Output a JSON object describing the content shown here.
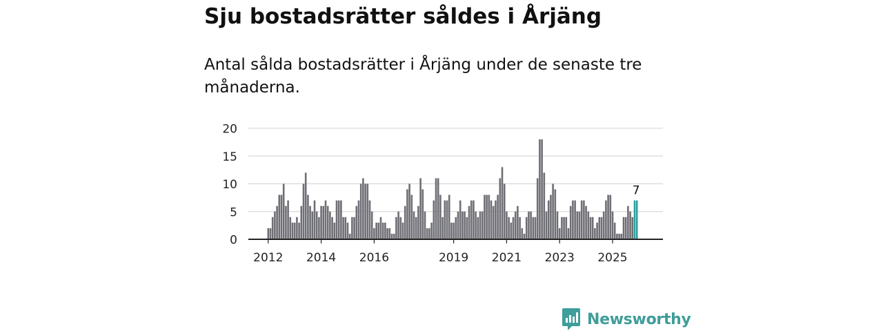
{
  "title": "Sju bostadsrätter såldes i Årjäng",
  "subtitle": "Antal sålda bostadsrätter i Årjäng under de senaste tre månaderna.",
  "brand": {
    "name": "Newsworthy",
    "logo_icon": "newsworthy-logo-icon",
    "color": "#3f9d9a"
  },
  "chart_data": {
    "type": "bar",
    "title": "Sju bostadsrätter såldes i Årjäng",
    "xlabel": "",
    "ylabel": "",
    "ylim": [
      0,
      20
    ],
    "yticks": [
      0,
      5,
      10,
      15,
      20
    ],
    "ytick_labels": [
      "0",
      "5",
      "10",
      "15",
      "20"
    ],
    "grid": true,
    "bar_color": "#6e6e75",
    "highlight_color": "#2c9e9a",
    "start": "2012-01",
    "categories": [
      "2012-01",
      "2012-02",
      "2012-03",
      "2012-04",
      "2012-05",
      "2012-06",
      "2012-07",
      "2012-08",
      "2012-09",
      "2012-10",
      "2012-11",
      "2012-12",
      "2013-01",
      "2013-02",
      "2013-03",
      "2013-04",
      "2013-05",
      "2013-06",
      "2013-07",
      "2013-08",
      "2013-09",
      "2013-10",
      "2013-11",
      "2013-12",
      "2014-01",
      "2014-02",
      "2014-03",
      "2014-04",
      "2014-05",
      "2014-06",
      "2014-07",
      "2014-08",
      "2014-09",
      "2014-10",
      "2014-11",
      "2014-12",
      "2015-01",
      "2015-02",
      "2015-03",
      "2015-04",
      "2015-05",
      "2015-06",
      "2015-07",
      "2015-08",
      "2015-09",
      "2015-10",
      "2015-11",
      "2015-12",
      "2016-01",
      "2016-02",
      "2016-03",
      "2016-04",
      "2016-05",
      "2016-06",
      "2016-07",
      "2016-08",
      "2016-09",
      "2016-10",
      "2016-11",
      "2016-12",
      "2017-01",
      "2017-02",
      "2017-03",
      "2017-04",
      "2017-05",
      "2017-06",
      "2017-07",
      "2017-08",
      "2017-09",
      "2017-10",
      "2017-11",
      "2017-12",
      "2018-01",
      "2018-02",
      "2018-03",
      "2018-04",
      "2018-05",
      "2018-06",
      "2018-07",
      "2018-08",
      "2018-09",
      "2018-10",
      "2018-11",
      "2018-12",
      "2019-01",
      "2019-02",
      "2019-03",
      "2019-04",
      "2019-05",
      "2019-06",
      "2019-07",
      "2019-08",
      "2019-09",
      "2019-10",
      "2019-11",
      "2019-12",
      "2020-01",
      "2020-02",
      "2020-03",
      "2020-04",
      "2020-05",
      "2020-06",
      "2020-07",
      "2020-08",
      "2020-09",
      "2020-10",
      "2020-11",
      "2020-12",
      "2021-01",
      "2021-02",
      "2021-03",
      "2021-04",
      "2021-05",
      "2021-06",
      "2021-07",
      "2021-08",
      "2021-09",
      "2021-10",
      "2021-11",
      "2021-12",
      "2022-01",
      "2022-02",
      "2022-03",
      "2022-04",
      "2022-05",
      "2022-06",
      "2022-07",
      "2022-08",
      "2022-09",
      "2022-10",
      "2022-11",
      "2022-12",
      "2023-01",
      "2023-02",
      "2023-03",
      "2023-04",
      "2023-05",
      "2023-06",
      "2023-07",
      "2023-08",
      "2023-09",
      "2023-10",
      "2023-11",
      "2023-12",
      "2024-01",
      "2024-02",
      "2024-03",
      "2024-04",
      "2024-05",
      "2024-06",
      "2024-07",
      "2024-08",
      "2024-09",
      "2024-10",
      "2024-11",
      "2024-12",
      "2025-01",
      "2025-02",
      "2025-03",
      "2025-04",
      "2025-05",
      "2025-06",
      "2025-07",
      "2025-08",
      "2025-09",
      "2025-10",
      "2025-11",
      "2025-12"
    ],
    "values": [
      2,
      2,
      4,
      5,
      6,
      8,
      8,
      10,
      6,
      7,
      4,
      3,
      3,
      4,
      3,
      6,
      10,
      12,
      8,
      6,
      5,
      7,
      5,
      4,
      6,
      6,
      7,
      6,
      5,
      4,
      3,
      7,
      7,
      7,
      4,
      4,
      3,
      1,
      4,
      4,
      6,
      7,
      10,
      11,
      10,
      10,
      7,
      5,
      2,
      3,
      3,
      4,
      3,
      3,
      2,
      2,
      1,
      1,
      4,
      5,
      4,
      3,
      6,
      9,
      10,
      8,
      5,
      4,
      6,
      11,
      9,
      5,
      2,
      2,
      3,
      7,
      11,
      11,
      8,
      4,
      7,
      7,
      8,
      3,
      3,
      4,
      5,
      7,
      5,
      5,
      4,
      6,
      7,
      7,
      5,
      4,
      5,
      5,
      8,
      8,
      8,
      7,
      6,
      7,
      8,
      11,
      13,
      10,
      5,
      4,
      3,
      4,
      5,
      6,
      4,
      2,
      1,
      4,
      5,
      5,
      4,
      4,
      11,
      18,
      18,
      12,
      5,
      7,
      8,
      10,
      9,
      5,
      2,
      4,
      4,
      4,
      2,
      6,
      7,
      7,
      5,
      5,
      7,
      7,
      6,
      5,
      4,
      4,
      2,
      3,
      4,
      4,
      5,
      7,
      8,
      8,
      5,
      3,
      1,
      1,
      1,
      4,
      4,
      6,
      5,
      4,
      7,
      7
    ],
    "highlight_last": 2,
    "x_tick_labels": [
      {
        "label": "2012",
        "index": 0
      },
      {
        "label": "2014",
        "index": 24
      },
      {
        "label": "2016",
        "index": 48
      },
      {
        "label": "2019",
        "index": 84
      },
      {
        "label": "2021",
        "index": 108
      },
      {
        "label": "2023",
        "index": 132
      },
      {
        "label": "2025",
        "index": 156
      }
    ],
    "data_label": {
      "text": "7",
      "index": 167
    }
  }
}
